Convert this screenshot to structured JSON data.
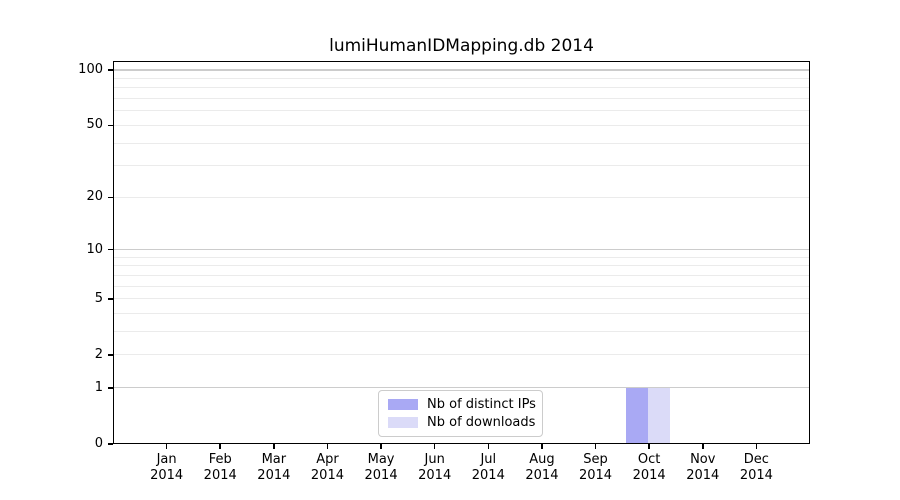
{
  "title": "lumiHumanIDMapping.db 2014",
  "chart_data": {
    "type": "bar",
    "title": "lumiHumanIDMapping.db 2014",
    "categories": [
      "Jan 2014",
      "Feb 2014",
      "Mar 2014",
      "Apr 2014",
      "May 2014",
      "Jun 2014",
      "Jul 2014",
      "Aug 2014",
      "Sep 2014",
      "Oct 2014",
      "Nov 2014",
      "Dec 2014"
    ],
    "series": [
      {
        "name": "Nb of distinct IPs",
        "color": "#a9a9f4",
        "values": [
          0,
          0,
          0,
          0,
          0,
          0,
          0,
          0,
          0,
          1,
          0,
          0
        ]
      },
      {
        "name": "Nb of downloads",
        "color": "#dbdbf8",
        "values": [
          0,
          0,
          0,
          0,
          0,
          0,
          0,
          0,
          0,
          1,
          0,
          0
        ]
      }
    ],
    "xlabel": "",
    "ylabel": "",
    "yscale": "log1p",
    "ylim": [
      0,
      110
    ],
    "y_ticks": [
      0,
      1,
      2,
      5,
      10,
      20,
      50,
      100
    ],
    "y_major_gridlines": [
      1,
      10,
      100
    ],
    "y_minor_gridlines": [
      2,
      3,
      4,
      5,
      6,
      7,
      8,
      9,
      20,
      30,
      40,
      50,
      60,
      70,
      80,
      90
    ],
    "grid": true,
    "legend_position": "lower center inside plot"
  },
  "legend": {
    "items": [
      {
        "label": "Nb of distinct IPs",
        "color": "#a9a9f4"
      },
      {
        "label": "Nb of downloads",
        "color": "#dbdbf8"
      }
    ]
  },
  "colors": {
    "background": "#ffffff",
    "axis": "#000000",
    "text": "#000000",
    "major_grid": "#cccccc",
    "minor_grid": "#ebebeb",
    "bar_distinct_ips": "#a9a9f4",
    "bar_downloads": "#dbdbf8"
  }
}
